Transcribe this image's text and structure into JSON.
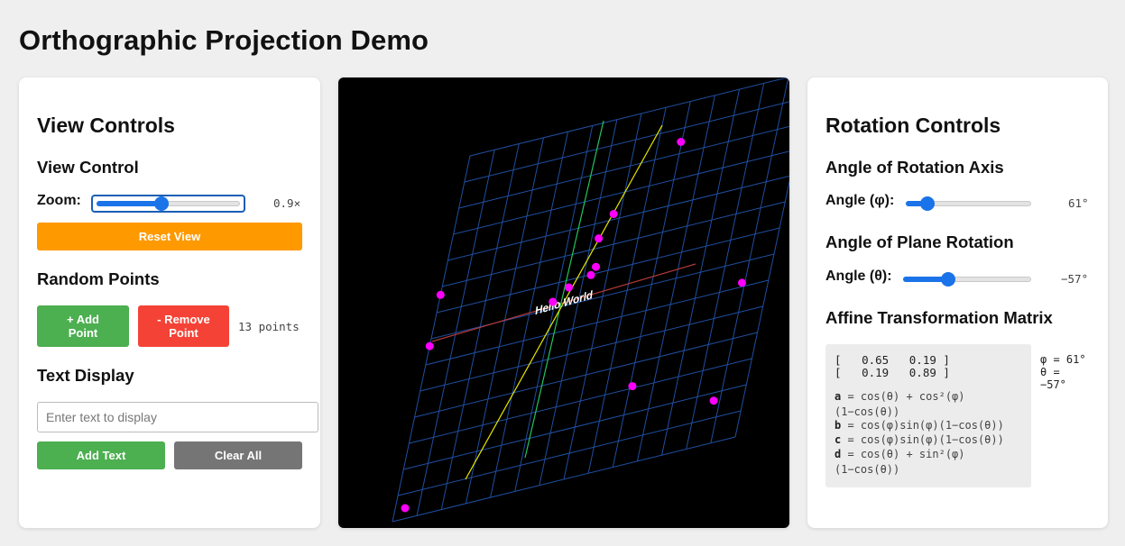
{
  "page": {
    "title": "Orthographic Projection Demo"
  },
  "left": {
    "title": "View Controls",
    "view_control": {
      "heading": "View Control",
      "zoom_label": "Zoom:",
      "zoom_value": "0.9×",
      "zoom_level": 0.45,
      "reset_label": "Reset View"
    },
    "random_points": {
      "heading": "Random Points",
      "add_label": "+ Add Point",
      "remove_label": "- Remove Point",
      "count_text": "13 points"
    },
    "text_display": {
      "heading": "Text Display",
      "placeholder": "Enter text to display",
      "value": "",
      "add_label": "Add Text",
      "clear_label": "Clear All"
    }
  },
  "right": {
    "title": "Rotation Controls",
    "axis": {
      "heading": "Angle of Rotation Axis",
      "label": "Angle (φ):",
      "value": "61°",
      "level": 0.17
    },
    "plane": {
      "heading": "Angle of Plane Rotation",
      "label": "Angle (θ):",
      "value": "−57°",
      "level": 0.35
    },
    "matrix": {
      "heading": "Affine Transformation Matrix",
      "row1": "[   0.65   0.19 ]",
      "row2": "[   0.19   0.89 ]",
      "phi_text": "φ = 61°",
      "theta_text": "θ =",
      "theta_value": "−57°",
      "formula_a_key": "a",
      "formula_a": " = cos(θ) + cos²(φ)(1−cos(θ))",
      "formula_b_key": "b",
      "formula_b": " = cos(φ)sin(φ)(1−cos(θ))",
      "formula_c_key": "c",
      "formula_c": " = cos(φ)sin(φ)(1−cos(θ))",
      "formula_d_key": "d",
      "formula_d": " = cos(θ) + sin²(φ)(1−cos(θ))"
    }
  },
  "canvas": {
    "text_label": "Hello World",
    "colors": {
      "background": "#000000",
      "grid": "#1f4fa0",
      "axis_green": "#22c55e",
      "axis_yellow": "#e6e600",
      "axis_red": "#b33a3a",
      "point": "#ff00ff"
    },
    "points": [
      [
        0.64,
        0.89
      ],
      [
        0.48,
        0.73
      ],
      [
        0.92,
        0.44
      ],
      [
        0.0,
        0.62
      ],
      [
        0.0,
        0.48
      ],
      [
        0.35,
        0.52
      ],
      [
        0.39,
        0.55
      ],
      [
        0.45,
        0.57
      ],
      [
        0.46,
        0.59
      ],
      [
        0.45,
        0.67
      ],
      [
        0.65,
        0.22
      ],
      [
        0.91,
        0.12
      ],
      [
        0.03,
        0.03
      ]
    ]
  },
  "colors": {
    "reset": "#ff9900",
    "add": "#4caf50",
    "remove": "#f44336",
    "clear": "#757575",
    "slider": "#1a73e8"
  }
}
